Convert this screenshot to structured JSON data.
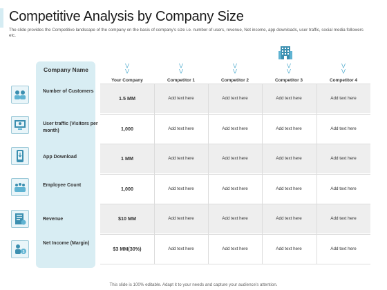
{
  "title": "Competitive Analysis by Company Size",
  "subtitle": "The slide provides the Competitive landscape of the company on the basis of company's size i.e. number of users, revenue, Net income, app downloads, user traffic, social media followers etc.",
  "table": {
    "row_header": "Company Name",
    "columns": [
      "Your Company",
      "Competitor 1",
      "Competitor 2",
      "Competitor 3",
      "Competitor 4"
    ],
    "rows": [
      {
        "label": "Number of Customers",
        "icon": "customers-icon",
        "values": [
          "1.5 MM",
          "Add text here",
          "Add text here",
          "Add text here",
          "Add text here"
        ]
      },
      {
        "label": "User traffic (Visitors per month)",
        "icon": "user-traffic-icon",
        "values": [
          "1,000",
          "Add text here",
          "Add text here",
          "Add text here",
          "Add text here"
        ]
      },
      {
        "label": "App Download",
        "icon": "app-download-icon",
        "values": [
          "1 MM",
          "Add text here",
          "Add text here",
          "Add text here",
          "Add text here"
        ]
      },
      {
        "label": "Employee Count",
        "icon": "employees-icon",
        "values": [
          "1,000",
          "Add text here",
          "Add text here",
          "Add text here",
          "Add text here"
        ]
      },
      {
        "label": "Revenue",
        "icon": "revenue-icon",
        "values": [
          "$10 MM",
          "Add text here",
          "Add text here",
          "Add text here",
          "Add text here"
        ]
      },
      {
        "label": "Net Income (Margin)",
        "icon": "net-income-icon",
        "values": [
          "$3 MM(30%)",
          "Add text here",
          "Add text here",
          "Add text here",
          "Add text here"
        ]
      }
    ]
  },
  "footer": "This slide is 100% editable. Adapt it to your needs and capture your audience's attention.",
  "colors": {
    "accent": "#3fa3c9",
    "name_column_bg": "#d8edf3",
    "shade": "#eeeeee"
  }
}
